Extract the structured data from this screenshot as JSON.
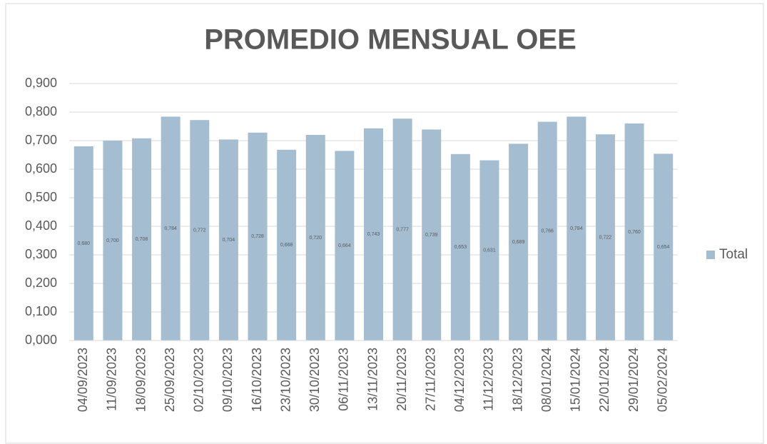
{
  "chart_data": {
    "type": "bar",
    "title": "PROMEDIO MENSUAL OEE",
    "categories": [
      "04/09/2023",
      "11/09/2023",
      "18/09/2023",
      "25/09/2023",
      "02/10/2023",
      "09/10/2023",
      "16/10/2023",
      "23/10/2023",
      "30/10/2023",
      "06/11/2023",
      "13/11/2023",
      "20/11/2023",
      "27/11/2023",
      "04/12/2023",
      "11/12/2023",
      "18/12/2023",
      "08/01/2024",
      "15/01/2024",
      "22/01/2024",
      "29/01/2024",
      "05/02/2024"
    ],
    "series": [
      {
        "name": "Total",
        "color": "#a5bdd0",
        "values": [
          0.68,
          0.7,
          0.708,
          0.784,
          0.772,
          0.704,
          0.728,
          0.668,
          0.72,
          0.664,
          0.743,
          0.777,
          0.739,
          0.653,
          0.631,
          0.689,
          0.766,
          0.784,
          0.722,
          0.76,
          0.654
        ],
        "value_labels": [
          "0,680",
          "0,700",
          "0,708",
          "0,784",
          "0,772",
          "0,704",
          "0,728",
          "0,668",
          "0,720",
          "0,664",
          "0,743",
          "0,777",
          "0,739",
          "0,653",
          "0,631",
          "0,689",
          "0,766",
          "0,784",
          "0,722",
          "0,760",
          "0,654"
        ]
      }
    ],
    "ylim": [
      0,
      0.9
    ],
    "yticks": [
      {
        "value": 0,
        "label": "0,000"
      },
      {
        "value": 0.1,
        "label": "0,100"
      },
      {
        "value": 0.2,
        "label": "0,200"
      },
      {
        "value": 0.3,
        "label": "0,300"
      },
      {
        "value": 0.4,
        "label": "0,400"
      },
      {
        "value": 0.5,
        "label": "0,500"
      },
      {
        "value": 0.6,
        "label": "0,600"
      },
      {
        "value": 0.7,
        "label": "0,700"
      },
      {
        "value": 0.8,
        "label": "0,800"
      },
      {
        "value": 0.9,
        "label": "0,900"
      }
    ],
    "grid": true,
    "legend": "right"
  }
}
